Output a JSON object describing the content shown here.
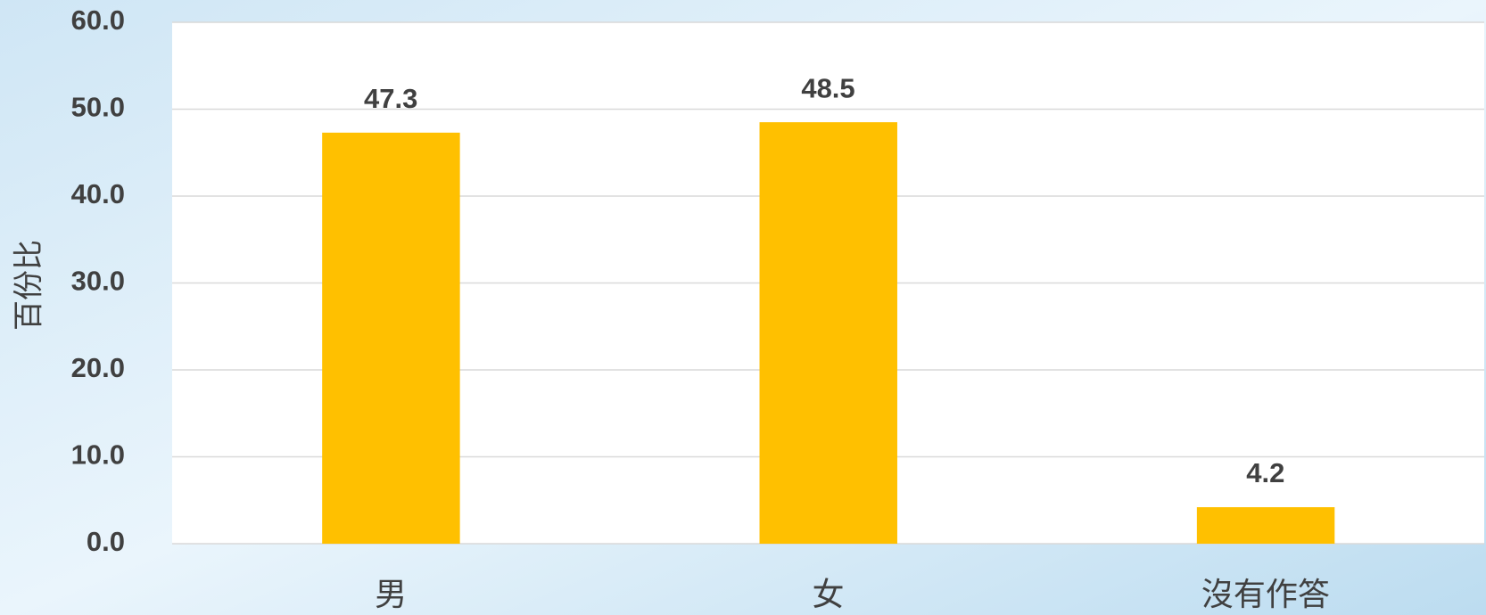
{
  "chart_data": {
    "type": "bar",
    "y_label": "百份比",
    "categories": [
      "男",
      "女",
      "沒有作答"
    ],
    "values": [
      47.3,
      48.5,
      4.2
    ],
    "color": "#ffc000",
    "ylim": [
      0,
      60
    ],
    "yticks": [
      {
        "value": 0,
        "label": "0.0"
      },
      {
        "value": 10,
        "label": "10.0"
      },
      {
        "value": 20,
        "label": "20.0"
      },
      {
        "value": 30,
        "label": "30.0"
      },
      {
        "value": 40,
        "label": "40.0"
      },
      {
        "value": 50,
        "label": "50.0"
      },
      {
        "value": 60,
        "label": "60.0"
      }
    ],
    "grid": true
  }
}
